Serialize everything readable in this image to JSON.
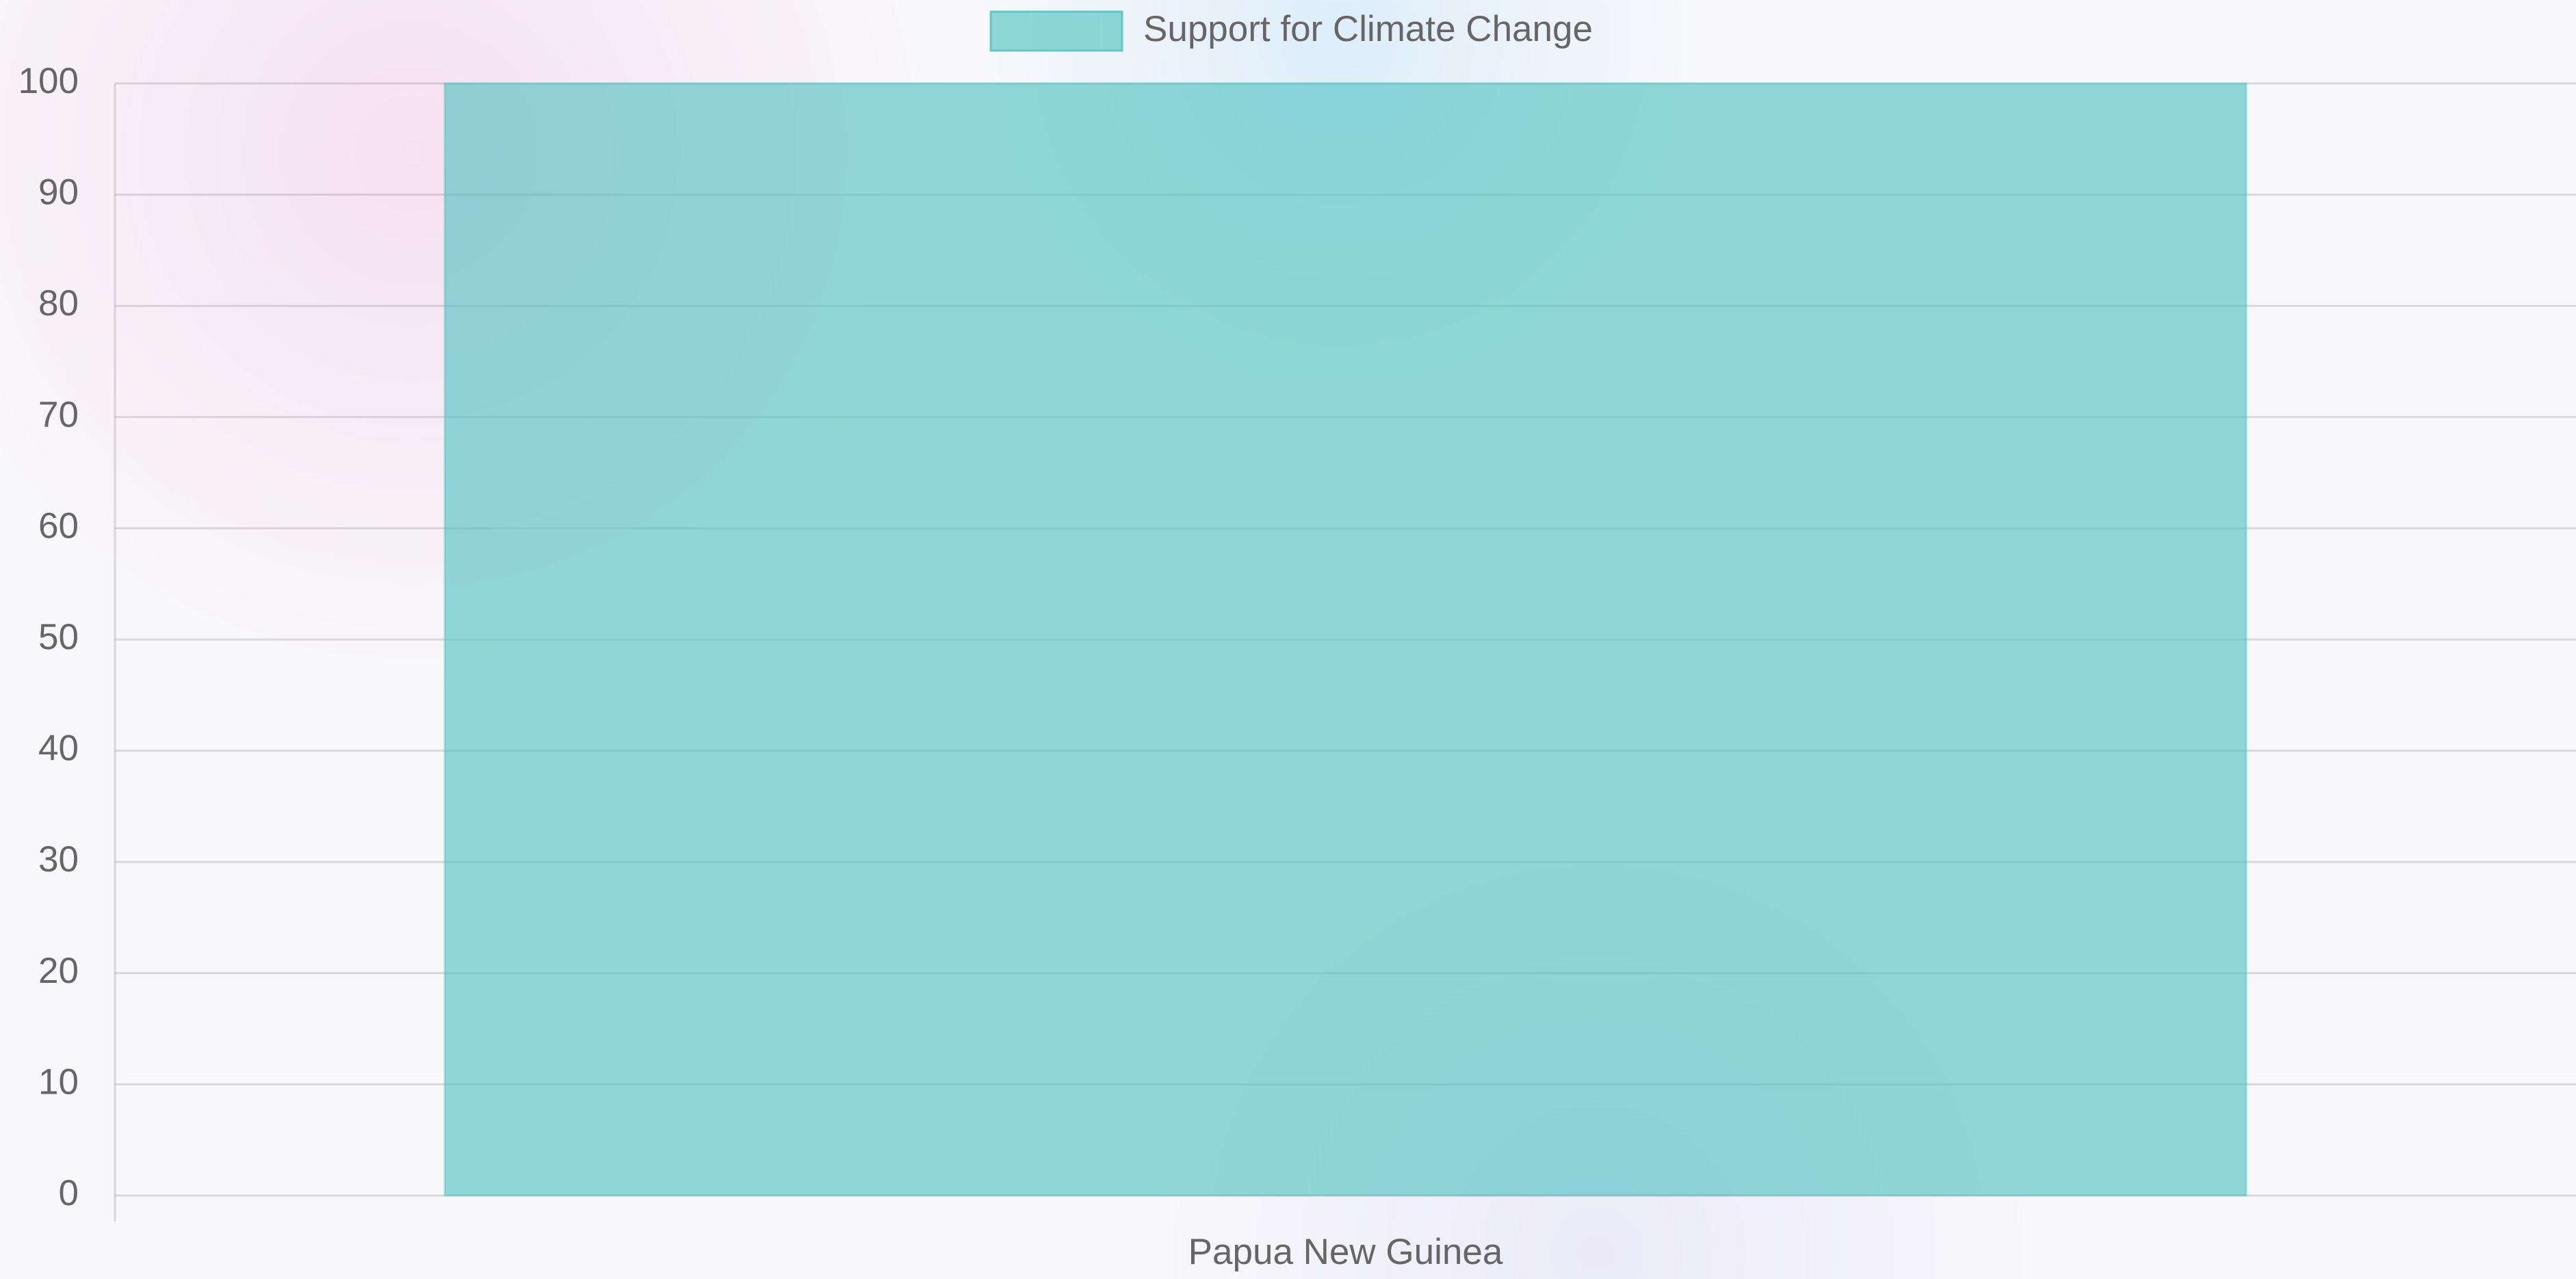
{
  "chart_data": {
    "type": "bar",
    "categories": [
      "Papua New Guinea"
    ],
    "series": [
      {
        "name": "Support for Climate Change",
        "color": "rgba(75, 192, 192, 0.6)",
        "values": [
          100
        ]
      }
    ],
    "ylim": [
      0,
      100
    ],
    "yticks": [
      0,
      10,
      20,
      30,
      40,
      50,
      60,
      70,
      80,
      90,
      100
    ],
    "grid": true,
    "legend": "top"
  }
}
